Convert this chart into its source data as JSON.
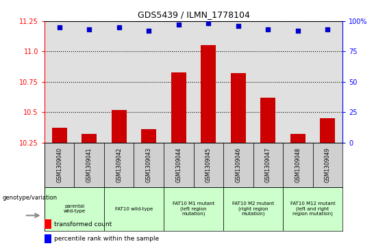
{
  "title": "GDS5439 / ILMN_1778104",
  "samples": [
    "GSM1309040",
    "GSM1309041",
    "GSM1309042",
    "GSM1309043",
    "GSM1309044",
    "GSM1309045",
    "GSM1309046",
    "GSM1309047",
    "GSM1309048",
    "GSM1309049"
  ],
  "transformed_counts": [
    10.37,
    10.32,
    10.52,
    10.36,
    10.83,
    11.05,
    10.82,
    10.62,
    10.32,
    10.45
  ],
  "percentile_ranks": [
    95,
    93,
    95,
    92,
    97,
    98,
    96,
    93,
    92,
    93
  ],
  "ylim_left": [
    10.25,
    11.25
  ],
  "ylim_right": [
    0,
    100
  ],
  "yticks_left": [
    10.25,
    10.5,
    10.75,
    11.0,
    11.25
  ],
  "yticks_right": [
    0,
    25,
    50,
    75,
    100
  ],
  "bar_color": "#cc0000",
  "dot_color": "#0000cc",
  "groups": [
    {
      "label": "parental\nwild-type",
      "start": 0,
      "end": 1,
      "color": "#ccffcc"
    },
    {
      "label": "FAT10 wild-type",
      "start": 2,
      "end": 3,
      "color": "#ccffcc"
    },
    {
      "label": "FAT10 M1 mutant\n(left region\nmutation)",
      "start": 4,
      "end": 5,
      "color": "#ccffcc"
    },
    {
      "label": "FAT10 M2 mutant\n(right region\nmutation)",
      "start": 6,
      "end": 7,
      "color": "#ccffcc"
    },
    {
      "label": "FAT10 M12 mutant\n(left and right\nregion mutation)",
      "start": 8,
      "end": 9,
      "color": "#ccffcc"
    }
  ],
  "legend_red_label": "transformed count",
  "legend_blue_label": "percentile rank within the sample",
  "genotype_label": "genotype/variation",
  "plot_bg_color": "#e0e0e0",
  "cell_bg_color": "#d0d0d0",
  "fig_width": 5.65,
  "fig_height": 3.63
}
